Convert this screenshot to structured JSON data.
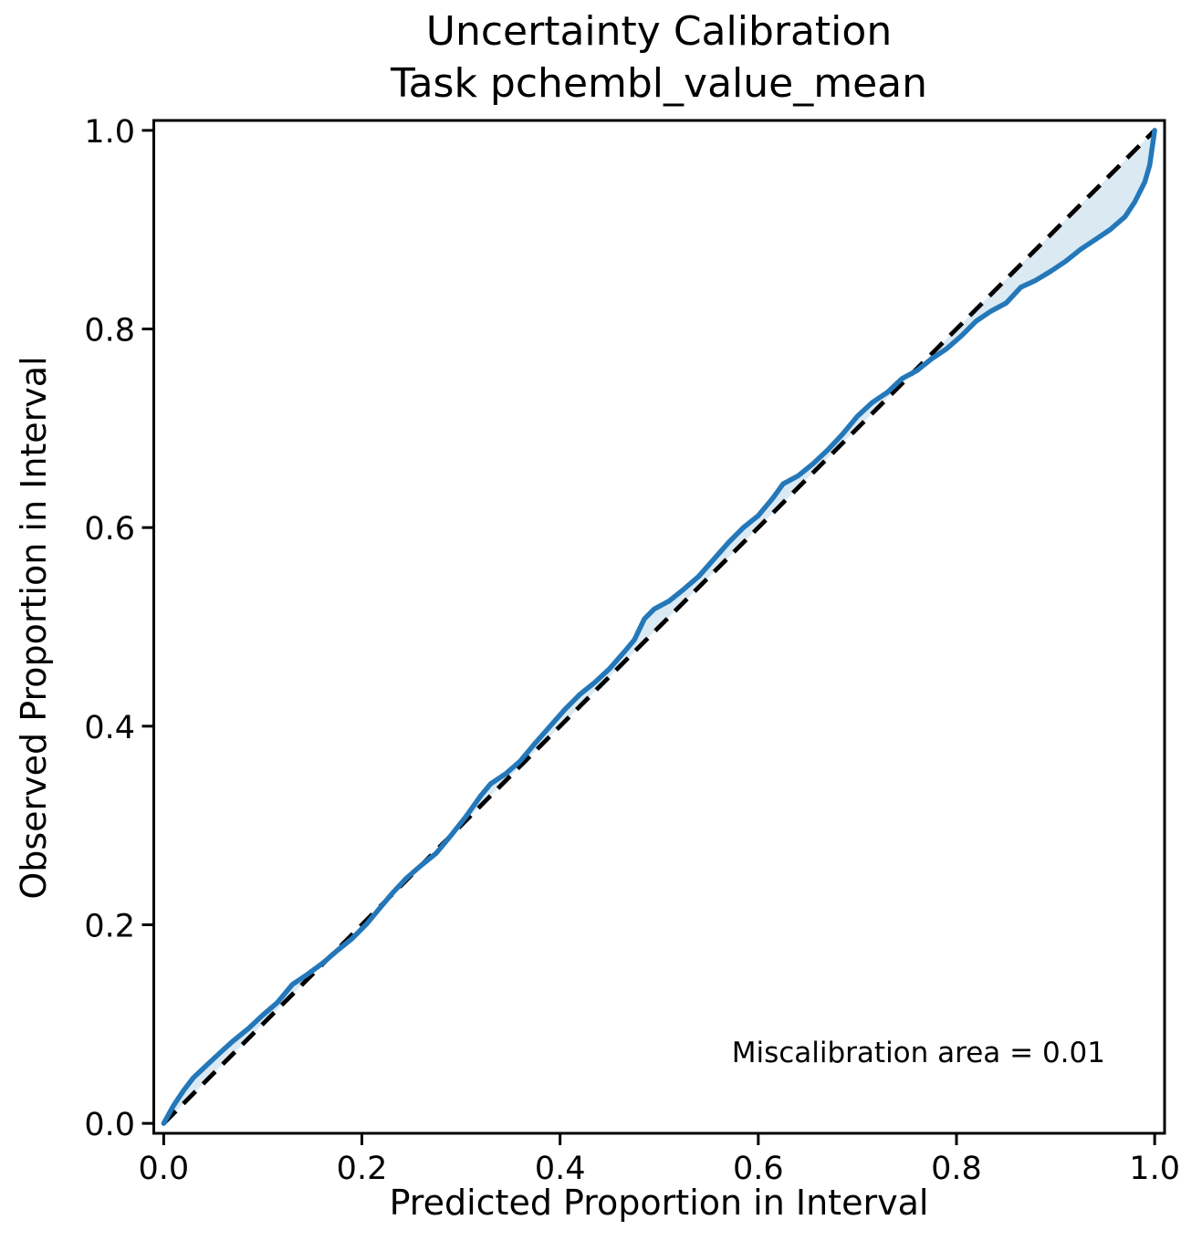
{
  "title": {
    "line1": "Uncertainty Calibration",
    "line2": "Task pchembl_value_mean"
  },
  "axes": {
    "x_label": "Predicted Proportion in Interval",
    "y_label": "Observed Proportion in Interval"
  },
  "annotation": {
    "text": "Miscalibration area = 0.01"
  },
  "colors": {
    "curve": "#2478b9",
    "fill": "#1f77b4",
    "fill_opacity": 0.16,
    "diagonal": "#000000",
    "spine": "#000000",
    "text": "#000000"
  },
  "chart_data": {
    "type": "line",
    "title": "Uncertainty Calibration\nTask pchembl_value_mean",
    "xlabel": "Predicted Proportion in Interval",
    "ylabel": "Observed Proportion in Interval",
    "xlim": [
      -0.01,
      1.01
    ],
    "ylim": [
      -0.01,
      1.01
    ],
    "x_ticks": [
      0.0,
      0.2,
      0.4,
      0.6,
      0.8,
      1.0
    ],
    "y_ticks": [
      0.0,
      0.2,
      0.4,
      0.6,
      0.8,
      1.0
    ],
    "x_tick_labels": [
      "0.0",
      "0.2",
      "0.4",
      "0.6",
      "0.8",
      "1.0"
    ],
    "y_tick_labels": [
      "0.0",
      "0.2",
      "0.4",
      "0.6",
      "0.8",
      "1.0"
    ],
    "grid": false,
    "legend": null,
    "miscalibration_area": 0.01,
    "diagonal": {
      "style": "dashed",
      "from": [
        0,
        0
      ],
      "to": [
        1,
        1
      ]
    },
    "series": [
      {
        "name": "calibration_curve",
        "x": [
          0.0,
          0.01,
          0.02,
          0.03,
          0.045,
          0.06,
          0.07,
          0.085,
          0.1,
          0.115,
          0.13,
          0.145,
          0.16,
          0.175,
          0.19,
          0.205,
          0.215,
          0.23,
          0.245,
          0.26,
          0.275,
          0.29,
          0.305,
          0.32,
          0.33,
          0.345,
          0.36,
          0.375,
          0.39,
          0.405,
          0.42,
          0.435,
          0.45,
          0.465,
          0.475,
          0.485,
          0.495,
          0.51,
          0.525,
          0.54,
          0.555,
          0.57,
          0.585,
          0.6,
          0.615,
          0.625,
          0.64,
          0.655,
          0.67,
          0.685,
          0.7,
          0.715,
          0.73,
          0.745,
          0.76,
          0.775,
          0.79,
          0.805,
          0.82,
          0.835,
          0.85,
          0.865,
          0.88,
          0.895,
          0.91,
          0.925,
          0.94,
          0.955,
          0.97,
          0.98,
          0.99,
          0.995,
          1.0
        ],
        "y": [
          0.0,
          0.018,
          0.033,
          0.046,
          0.06,
          0.074,
          0.083,
          0.095,
          0.109,
          0.122,
          0.14,
          0.15,
          0.161,
          0.174,
          0.186,
          0.201,
          0.213,
          0.231,
          0.247,
          0.26,
          0.272,
          0.29,
          0.309,
          0.33,
          0.342,
          0.352,
          0.365,
          0.383,
          0.4,
          0.417,
          0.432,
          0.444,
          0.458,
          0.475,
          0.487,
          0.508,
          0.518,
          0.526,
          0.538,
          0.551,
          0.568,
          0.585,
          0.6,
          0.612,
          0.63,
          0.644,
          0.652,
          0.664,
          0.678,
          0.694,
          0.712,
          0.726,
          0.736,
          0.75,
          0.758,
          0.77,
          0.78,
          0.793,
          0.808,
          0.818,
          0.826,
          0.842,
          0.849,
          0.858,
          0.868,
          0.88,
          0.89,
          0.9,
          0.913,
          0.928,
          0.948,
          0.965,
          1.0
        ]
      }
    ]
  }
}
